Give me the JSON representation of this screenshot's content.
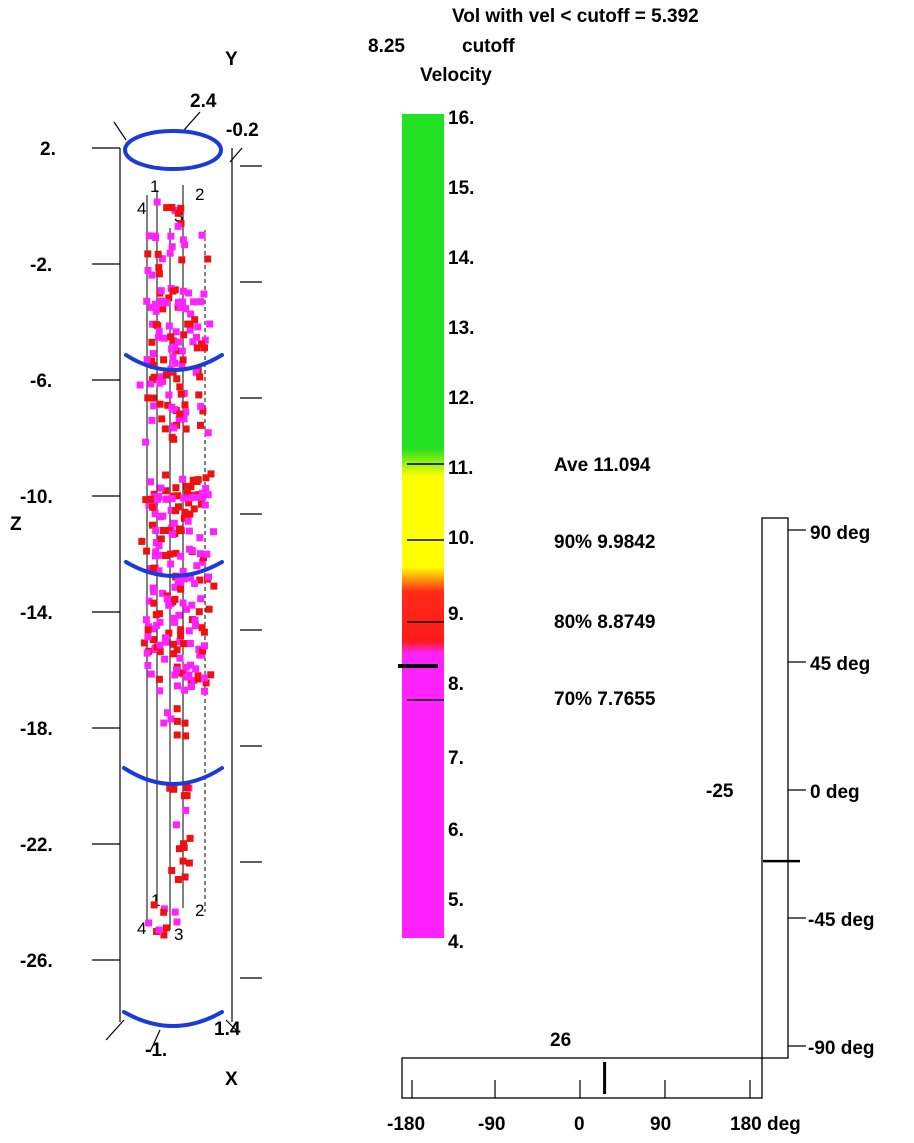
{
  "header": {
    "vol_text": "Vol with vel < cutoff = 5.392",
    "cutoff_value": "8.25",
    "cutoff_label": "cutoff",
    "velocity_label": "Velocity"
  },
  "cylinder": {
    "y_axis_label": "Y",
    "z_axis_label": "Z",
    "x_axis_label": "X",
    "top_left_value": "2.4",
    "top_right_value": "-0.2",
    "bottom_left_value": "-1.",
    "bottom_right_value": "1.4",
    "z_ticks": [
      "2.",
      "-2.",
      "-6.",
      "-10.",
      "-14.",
      "-18.",
      "-22.",
      "-26."
    ],
    "probe_labels_top": [
      "1",
      "2",
      "4",
      "3"
    ],
    "probe_labels_bottom": [
      "1",
      "2",
      "4",
      "3"
    ],
    "ring_color": "#1a3adb",
    "point_colors": {
      "low": "#ff22ff",
      "mid": "#ee1111"
    }
  },
  "velocity_scale": {
    "ticks": [
      "16.",
      "15.",
      "14.",
      "13.",
      "12.",
      "11.",
      "10.",
      "9.",
      "8.",
      "7.",
      "6.",
      "5.",
      "4."
    ],
    "colors": {
      "green": "#22e022",
      "yellow": "#ffff00",
      "red": "#ff1a1a",
      "magenta": "#ff22ff"
    }
  },
  "stats": {
    "ave": "Ave  11.094",
    "p90": "90% 9.9842",
    "p80": "80% 8.8749",
    "p70": "70% 7.7655"
  },
  "elevation_scale": {
    "ticks": [
      "90 deg",
      "45 deg",
      "0 deg",
      "-45 deg",
      "-90 deg"
    ],
    "current_label": "-25",
    "current_value_deg": -25
  },
  "azimuth_scale": {
    "ticks": [
      "-180",
      "-90",
      "0",
      "90",
      "180 deg"
    ],
    "current_label": "26",
    "current_value_deg": 26
  }
}
